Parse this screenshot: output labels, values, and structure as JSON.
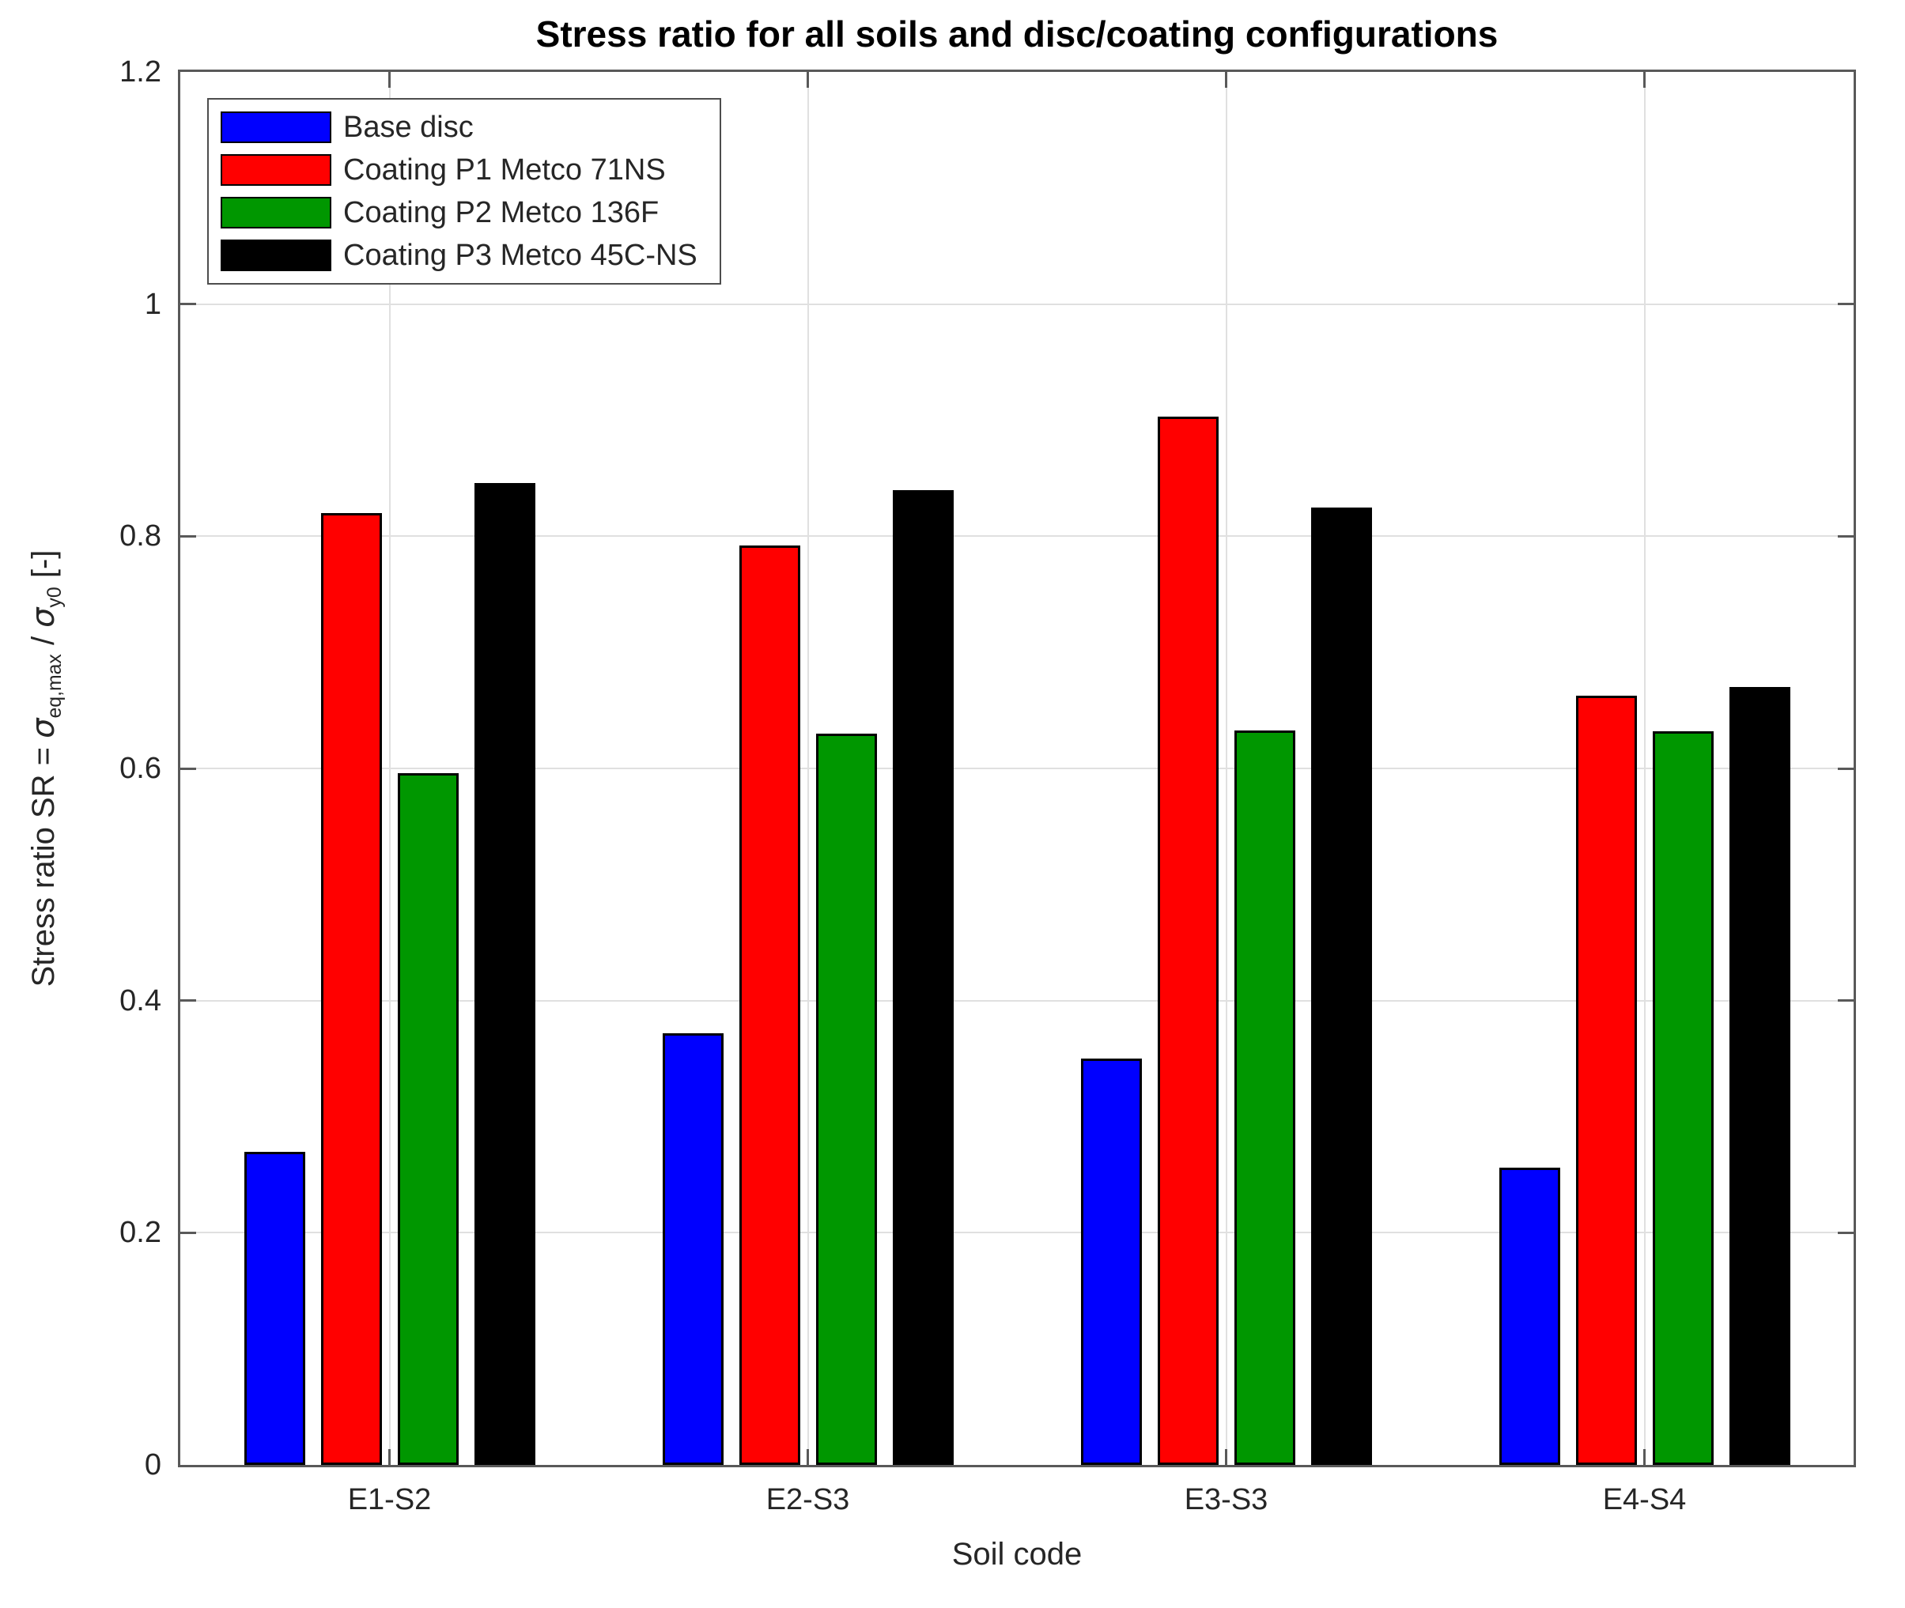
{
  "title": "Stress ratio for all soils and disc/coating configurations",
  "chart_data": {
    "type": "bar",
    "title": "Stress ratio for all soils and disc/coating configurations",
    "categories": [
      "E1-S2",
      "E2-S3",
      "E3-S3",
      "E4-S4"
    ],
    "series": [
      {
        "name": "Base disc",
        "color": "#0000ff",
        "values": [
          0.27,
          0.372,
          0.35,
          0.256
        ]
      },
      {
        "name": "Coating P1 Metco 71NS",
        "color": "#ff0000",
        "values": [
          0.82,
          0.792,
          0.903,
          0.663
        ]
      },
      {
        "name": "Coating P2 Metco 136F",
        "color": "#009700",
        "values": [
          0.596,
          0.63,
          0.633,
          0.632
        ]
      },
      {
        "name": "Coating P3 Metco 45C-NS",
        "color": "#000000",
        "values": [
          0.846,
          0.84,
          0.825,
          0.67
        ]
      }
    ],
    "xlabel": "Soil code",
    "ylabel_text": "Stress ratio SR = σ_eq,max / σ_y0 [-]",
    "ylabel_parts": {
      "prefix": "Stress ratio SR = ",
      "sigma1": "σ",
      "sub1": "eq,max",
      "divider": " / ",
      "sigma2": "σ",
      "sub2": "y0",
      "suffix": " [-]"
    },
    "ylim": [
      0,
      1.2
    ],
    "yticks": [
      0,
      0.2,
      0.4,
      0.6,
      0.8,
      1,
      1.2
    ],
    "ytick_labels": [
      "0",
      "0.2",
      "0.4",
      "0.6",
      "0.8",
      "1",
      "1.2"
    ],
    "grid": true,
    "legend_position": "top-left"
  },
  "colors": {
    "axis": "#595959",
    "grid": "#e0e0e0",
    "text": "#262626",
    "background": "#ffffff",
    "bar_edge": "#000000"
  }
}
